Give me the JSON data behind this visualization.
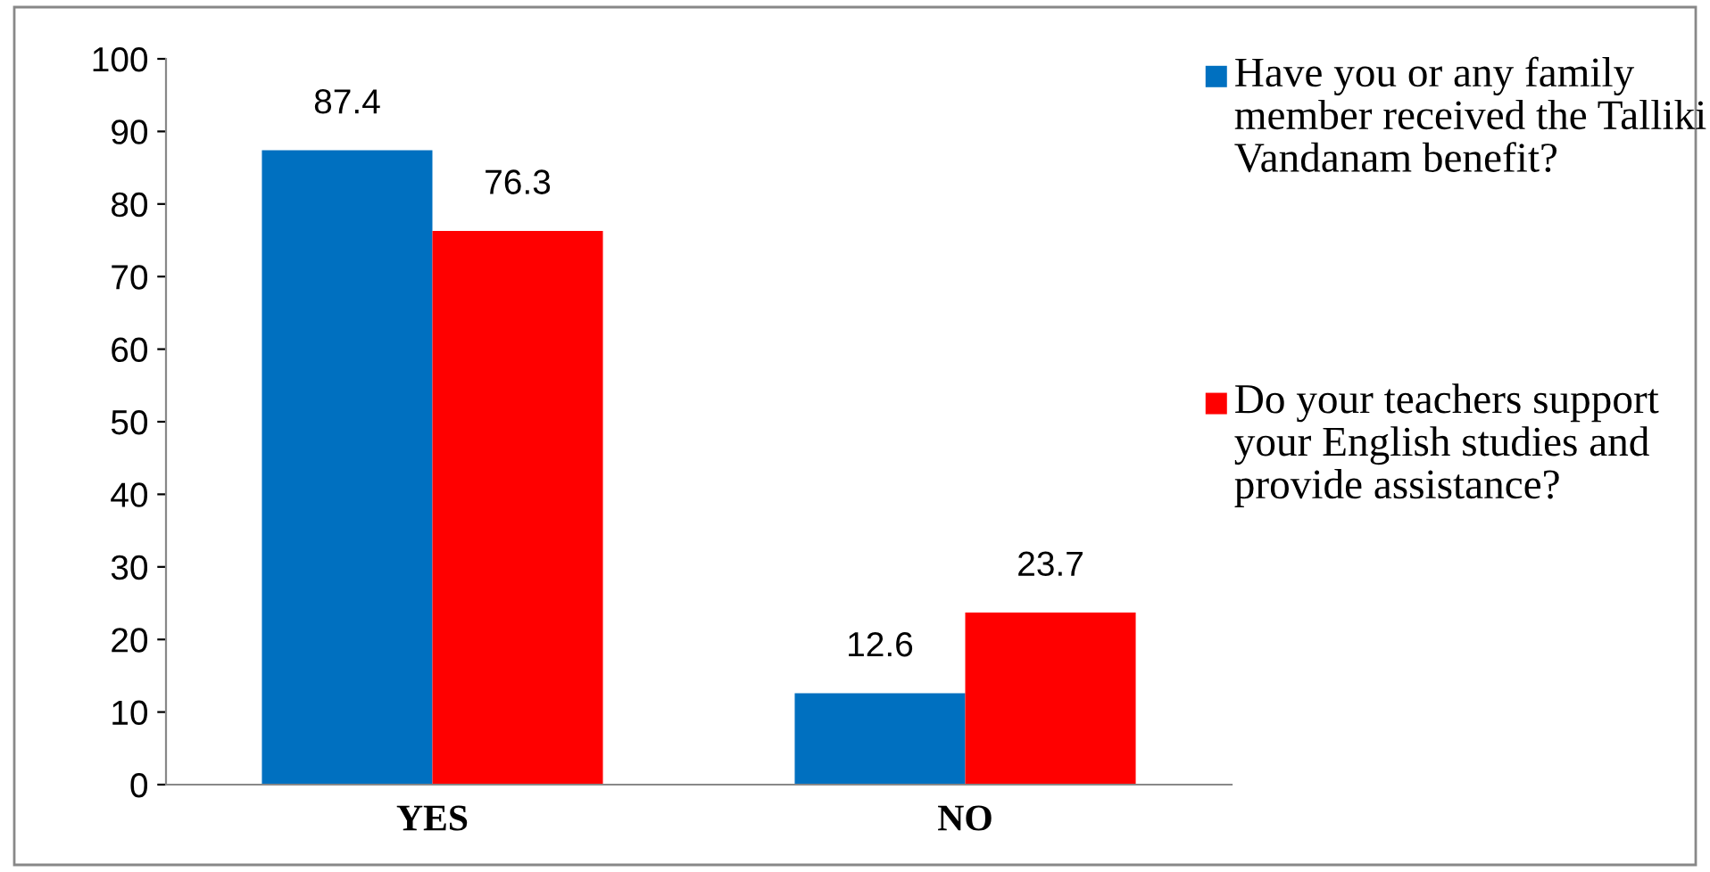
{
  "chart_data": {
    "type": "bar",
    "categories": [
      "YES",
      "NO"
    ],
    "series": [
      {
        "name": "Have you or any family member received the Talliki Vandanam benefit?",
        "color": "#0070c0",
        "values": [
          87.4,
          12.6
        ]
      },
      {
        "name": "Do your teachers support your English studies and provide assistance?",
        "color": "#ff0000",
        "values": [
          76.3,
          23.7
        ]
      }
    ],
    "ylim": [
      0,
      100
    ],
    "yticks": [
      0,
      10,
      20,
      30,
      40,
      50,
      60,
      70,
      80,
      90,
      100
    ],
    "grid": false,
    "legend": "right",
    "data_labels": true
  }
}
